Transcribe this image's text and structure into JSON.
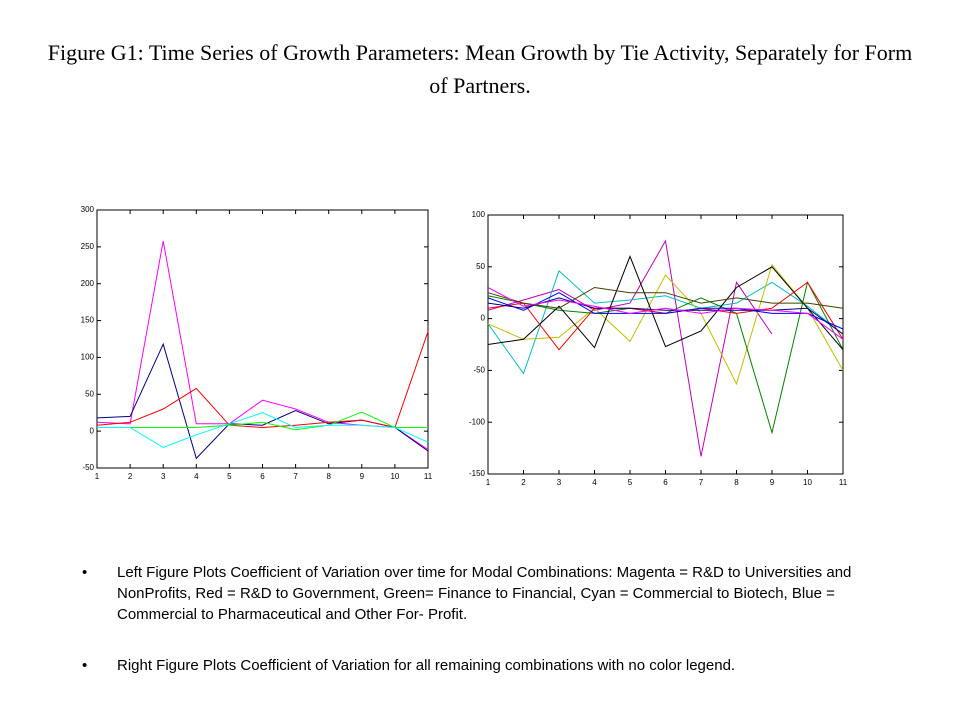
{
  "title": "Figure G1: Time Series of Growth Parameters: Mean Growth by Tie Activity, Separately for Form of Partners.",
  "bullets": [
    "Left Figure Plots Coefficient of Variation over time for Modal Combinations:  Magenta = R&D to Universities and NonProfits, Red = R&D to Government, Green= Finance to Financial, Cyan = Commercial to Biotech, Blue = Commercial to Pharmaceutical and Other For- Profit.",
    "Right Figure Plots Coefficient of Variation for all remaining combinations with no color legend."
  ],
  "chart_data": [
    {
      "type": "line",
      "x": [
        1,
        2,
        3,
        4,
        5,
        6,
        7,
        8,
        9,
        10,
        11
      ],
      "xlim": [
        1,
        11
      ],
      "xticks": [
        1,
        2,
        3,
        4,
        5,
        6,
        7,
        8,
        9,
        10,
        11
      ],
      "ylim": [
        -50,
        300
      ],
      "yticks": [
        -50,
        0,
        50,
        100,
        150,
        200,
        250,
        300
      ],
      "series": [
        {
          "color": "#ff00ff",
          "values": [
            12,
            10,
            258,
            10,
            10,
            42,
            30,
            12,
            8,
            5,
            -25
          ]
        },
        {
          "color": "#000080",
          "values": [
            18,
            20,
            118,
            -37,
            10,
            8,
            28,
            10,
            15,
            5,
            -27
          ]
        },
        {
          "color": "#ff0000",
          "values": [
            8,
            12,
            30,
            58,
            8,
            5,
            8,
            12,
            15,
            5,
            135
          ]
        },
        {
          "color": "#00ff00",
          "values": [
            5,
            5,
            5,
            5,
            8,
            12,
            2,
            8,
            26,
            5,
            5
          ]
        },
        {
          "color": "#00ffff",
          "values": [
            5,
            5,
            -22,
            -5,
            10,
            25,
            5,
            8,
            8,
            5,
            -15
          ]
        }
      ]
    },
    {
      "type": "line",
      "x": [
        1,
        2,
        3,
        4,
        5,
        6,
        7,
        8,
        9,
        10,
        11
      ],
      "xlim": [
        1,
        11
      ],
      "xticks": [
        1,
        2,
        3,
        4,
        5,
        6,
        7,
        8,
        9,
        10,
        11
      ],
      "ylim": [
        -150,
        100
      ],
      "yticks": [
        -150,
        -100,
        -50,
        0,
        50,
        100
      ],
      "series": [
        {
          "color": "#c000c0",
          "values": [
            8,
            18,
            28,
            8,
            15,
            75,
            -133,
            35,
            -15,
            null,
            null
          ]
        },
        {
          "color": "#00c0c0",
          "values": [
            -5,
            -53,
            46,
            15,
            18,
            22,
            10,
            15,
            35,
            12,
            -15
          ]
        },
        {
          "color": "#c0c000",
          "values": [
            -5,
            -20,
            -18,
            10,
            -22,
            42,
            5,
            -63,
            52,
            10,
            -50
          ]
        },
        {
          "color": "#008000",
          "values": [
            22,
            15,
            8,
            5,
            10,
            5,
            20,
            5,
            -110,
            35,
            -30
          ]
        },
        {
          "color": "#000000",
          "values": [
            -25,
            -20,
            12,
            -28,
            60,
            -27,
            -12,
            30,
            50,
            10,
            -30
          ]
        },
        {
          "color": "#ff0000",
          "values": [
            10,
            15,
            -30,
            10,
            10,
            5,
            10,
            5,
            10,
            35,
            -20
          ]
        },
        {
          "color": "#0000ff",
          "values": [
            20,
            8,
            25,
            5,
            5,
            5,
            10,
            10,
            5,
            5,
            -10
          ]
        },
        {
          "color": "#000080",
          "values": [
            15,
            10,
            20,
            10,
            10,
            8,
            8,
            8,
            8,
            10,
            -15
          ]
        },
        {
          "color": "#404000",
          "values": [
            25,
            15,
            10,
            30,
            25,
            25,
            15,
            20,
            15,
            15,
            10
          ]
        },
        {
          "color": "#ff00ff",
          "values": [
            30,
            12,
            18,
            12,
            5,
            10,
            5,
            10,
            8,
            5,
            -20
          ]
        }
      ]
    }
  ]
}
